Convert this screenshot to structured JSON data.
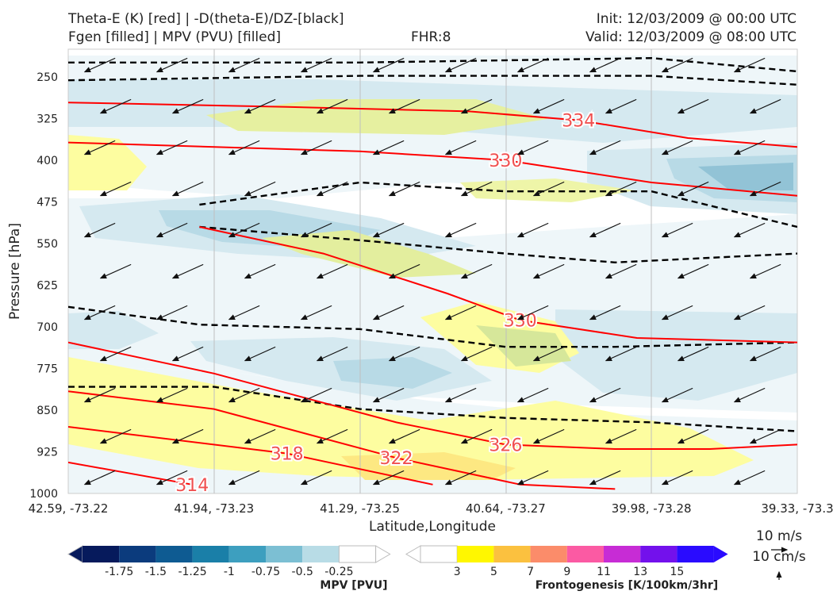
{
  "header": {
    "line1_left": "Theta-E (K) [red] | -D(theta-E)/DZ-[black]",
    "line2_left": "Fgen [filled] | MPV (PVU) [filled]",
    "fhr": "FHR:8",
    "init": "Init: 12/03/2009 @ 00:00 UTC",
    "valid": "Valid: 12/03/2009 @ 08:00 UTC"
  },
  "chart_data": {
    "type": "cross-section",
    "xlabel": "Latitude,Longitude",
    "ylabel": "Pressure [hPa]",
    "ylim": [
      1000,
      200
    ],
    "y_ticks": [
      250,
      325,
      400,
      475,
      550,
      625,
      700,
      775,
      850,
      925,
      1000
    ],
    "x_ticks": [
      "42.59, -73.22",
      "41.94, -73.23",
      "41.29, -73.25",
      "40.64, -73.27",
      "39.98, -73.28",
      "39.33, -73.3"
    ],
    "grid": true,
    "theta_e_contours": [
      {
        "label": "334",
        "points": [
          [
            0.0,
            0.12
          ],
          [
            0.3,
            0.13
          ],
          [
            0.55,
            0.14
          ],
          [
            0.7,
            0.16
          ],
          [
            0.85,
            0.2
          ],
          [
            1.0,
            0.22
          ]
        ]
      },
      {
        "label": "330",
        "points": [
          [
            0.0,
            0.21
          ],
          [
            0.4,
            0.23
          ],
          [
            0.6,
            0.25
          ],
          [
            0.8,
            0.3
          ],
          [
            1.0,
            0.33
          ]
        ]
      },
      {
        "label": "330",
        "points": [
          [
            0.18,
            0.4
          ],
          [
            0.35,
            0.46
          ],
          [
            0.52,
            0.55
          ],
          [
            0.62,
            0.61
          ],
          [
            0.78,
            0.65
          ],
          [
            1.0,
            0.66
          ]
        ]
      },
      {
        "label": "326",
        "points": [
          [
            0.0,
            0.66
          ],
          [
            0.2,
            0.73
          ],
          [
            0.45,
            0.84
          ],
          [
            0.6,
            0.89
          ],
          [
            0.75,
            0.9
          ],
          [
            0.88,
            0.9
          ],
          [
            1.0,
            0.89
          ]
        ]
      },
      {
        "label": "322",
        "points": [
          [
            0.0,
            0.77
          ],
          [
            0.2,
            0.81
          ],
          [
            0.45,
            0.92
          ],
          [
            0.62,
            0.98
          ],
          [
            0.75,
            0.99
          ]
        ]
      },
      {
        "label": "318",
        "points": [
          [
            0.0,
            0.85
          ],
          [
            0.3,
            0.91
          ],
          [
            0.5,
            0.98
          ]
        ]
      },
      {
        "label": "314",
        "points": [
          [
            0.0,
            0.93
          ],
          [
            0.17,
            0.98
          ]
        ]
      }
    ],
    "dthetae_dz_contours": [
      [
        [
          0.0,
          0.03
        ],
        [
          0.4,
          0.03
        ],
        [
          0.8,
          0.02
        ],
        [
          1.0,
          0.05
        ]
      ],
      [
        [
          0.0,
          0.07
        ],
        [
          0.4,
          0.06
        ],
        [
          0.8,
          0.06
        ],
        [
          1.0,
          0.08
        ]
      ],
      [
        [
          0.18,
          0.35
        ],
        [
          0.4,
          0.3
        ],
        [
          0.6,
          0.32
        ],
        [
          0.8,
          0.32
        ],
        [
          1.0,
          0.4
        ]
      ],
      [
        [
          0.18,
          0.4
        ],
        [
          0.4,
          0.43
        ],
        [
          0.6,
          0.46
        ],
        [
          0.75,
          0.48
        ],
        [
          1.0,
          0.46
        ]
      ],
      [
        [
          0.0,
          0.58
        ],
        [
          0.18,
          0.62
        ],
        [
          0.4,
          0.63
        ],
        [
          0.6,
          0.67
        ],
        [
          0.75,
          0.67
        ],
        [
          1.0,
          0.66
        ]
      ],
      [
        [
          0.0,
          0.76
        ],
        [
          0.2,
          0.76
        ],
        [
          0.4,
          0.81
        ],
        [
          0.6,
          0.83
        ],
        [
          0.8,
          0.84
        ],
        [
          1.0,
          0.86
        ]
      ]
    ],
    "mpv_shaded": {
      "label": "MPV [PVU]",
      "levels": [
        -1.75,
        -1.5,
        -1.25,
        -1.0,
        -0.75,
        -0.5,
        -0.25
      ]
    },
    "frontogenesis_shaded": {
      "label": "Frontogenesis [K/100km/3hr]",
      "levels": [
        3,
        5,
        7,
        9,
        11,
        13,
        15
      ]
    },
    "wind_vectors": {
      "u_dir": -1,
      "v_dir": 0.45,
      "scale_labels": [
        "10 m/s",
        "10 cm/s"
      ]
    }
  },
  "colors": {
    "theta_e": "#ff0000",
    "dthetae": "#000000",
    "mpv": [
      "#061a5c",
      "#0b3b7d",
      "#0e5b92",
      "#1a7fa8",
      "#3d9fbf",
      "#7cbfd3",
      "#b8dce6",
      "#ffffff"
    ],
    "fgen": [
      "#ffffff",
      "#fff700",
      "#fbc13f",
      "#fb8c6a",
      "#fb5aa3",
      "#c72cd5",
      "#7311ec",
      "#2a0bff"
    ]
  }
}
